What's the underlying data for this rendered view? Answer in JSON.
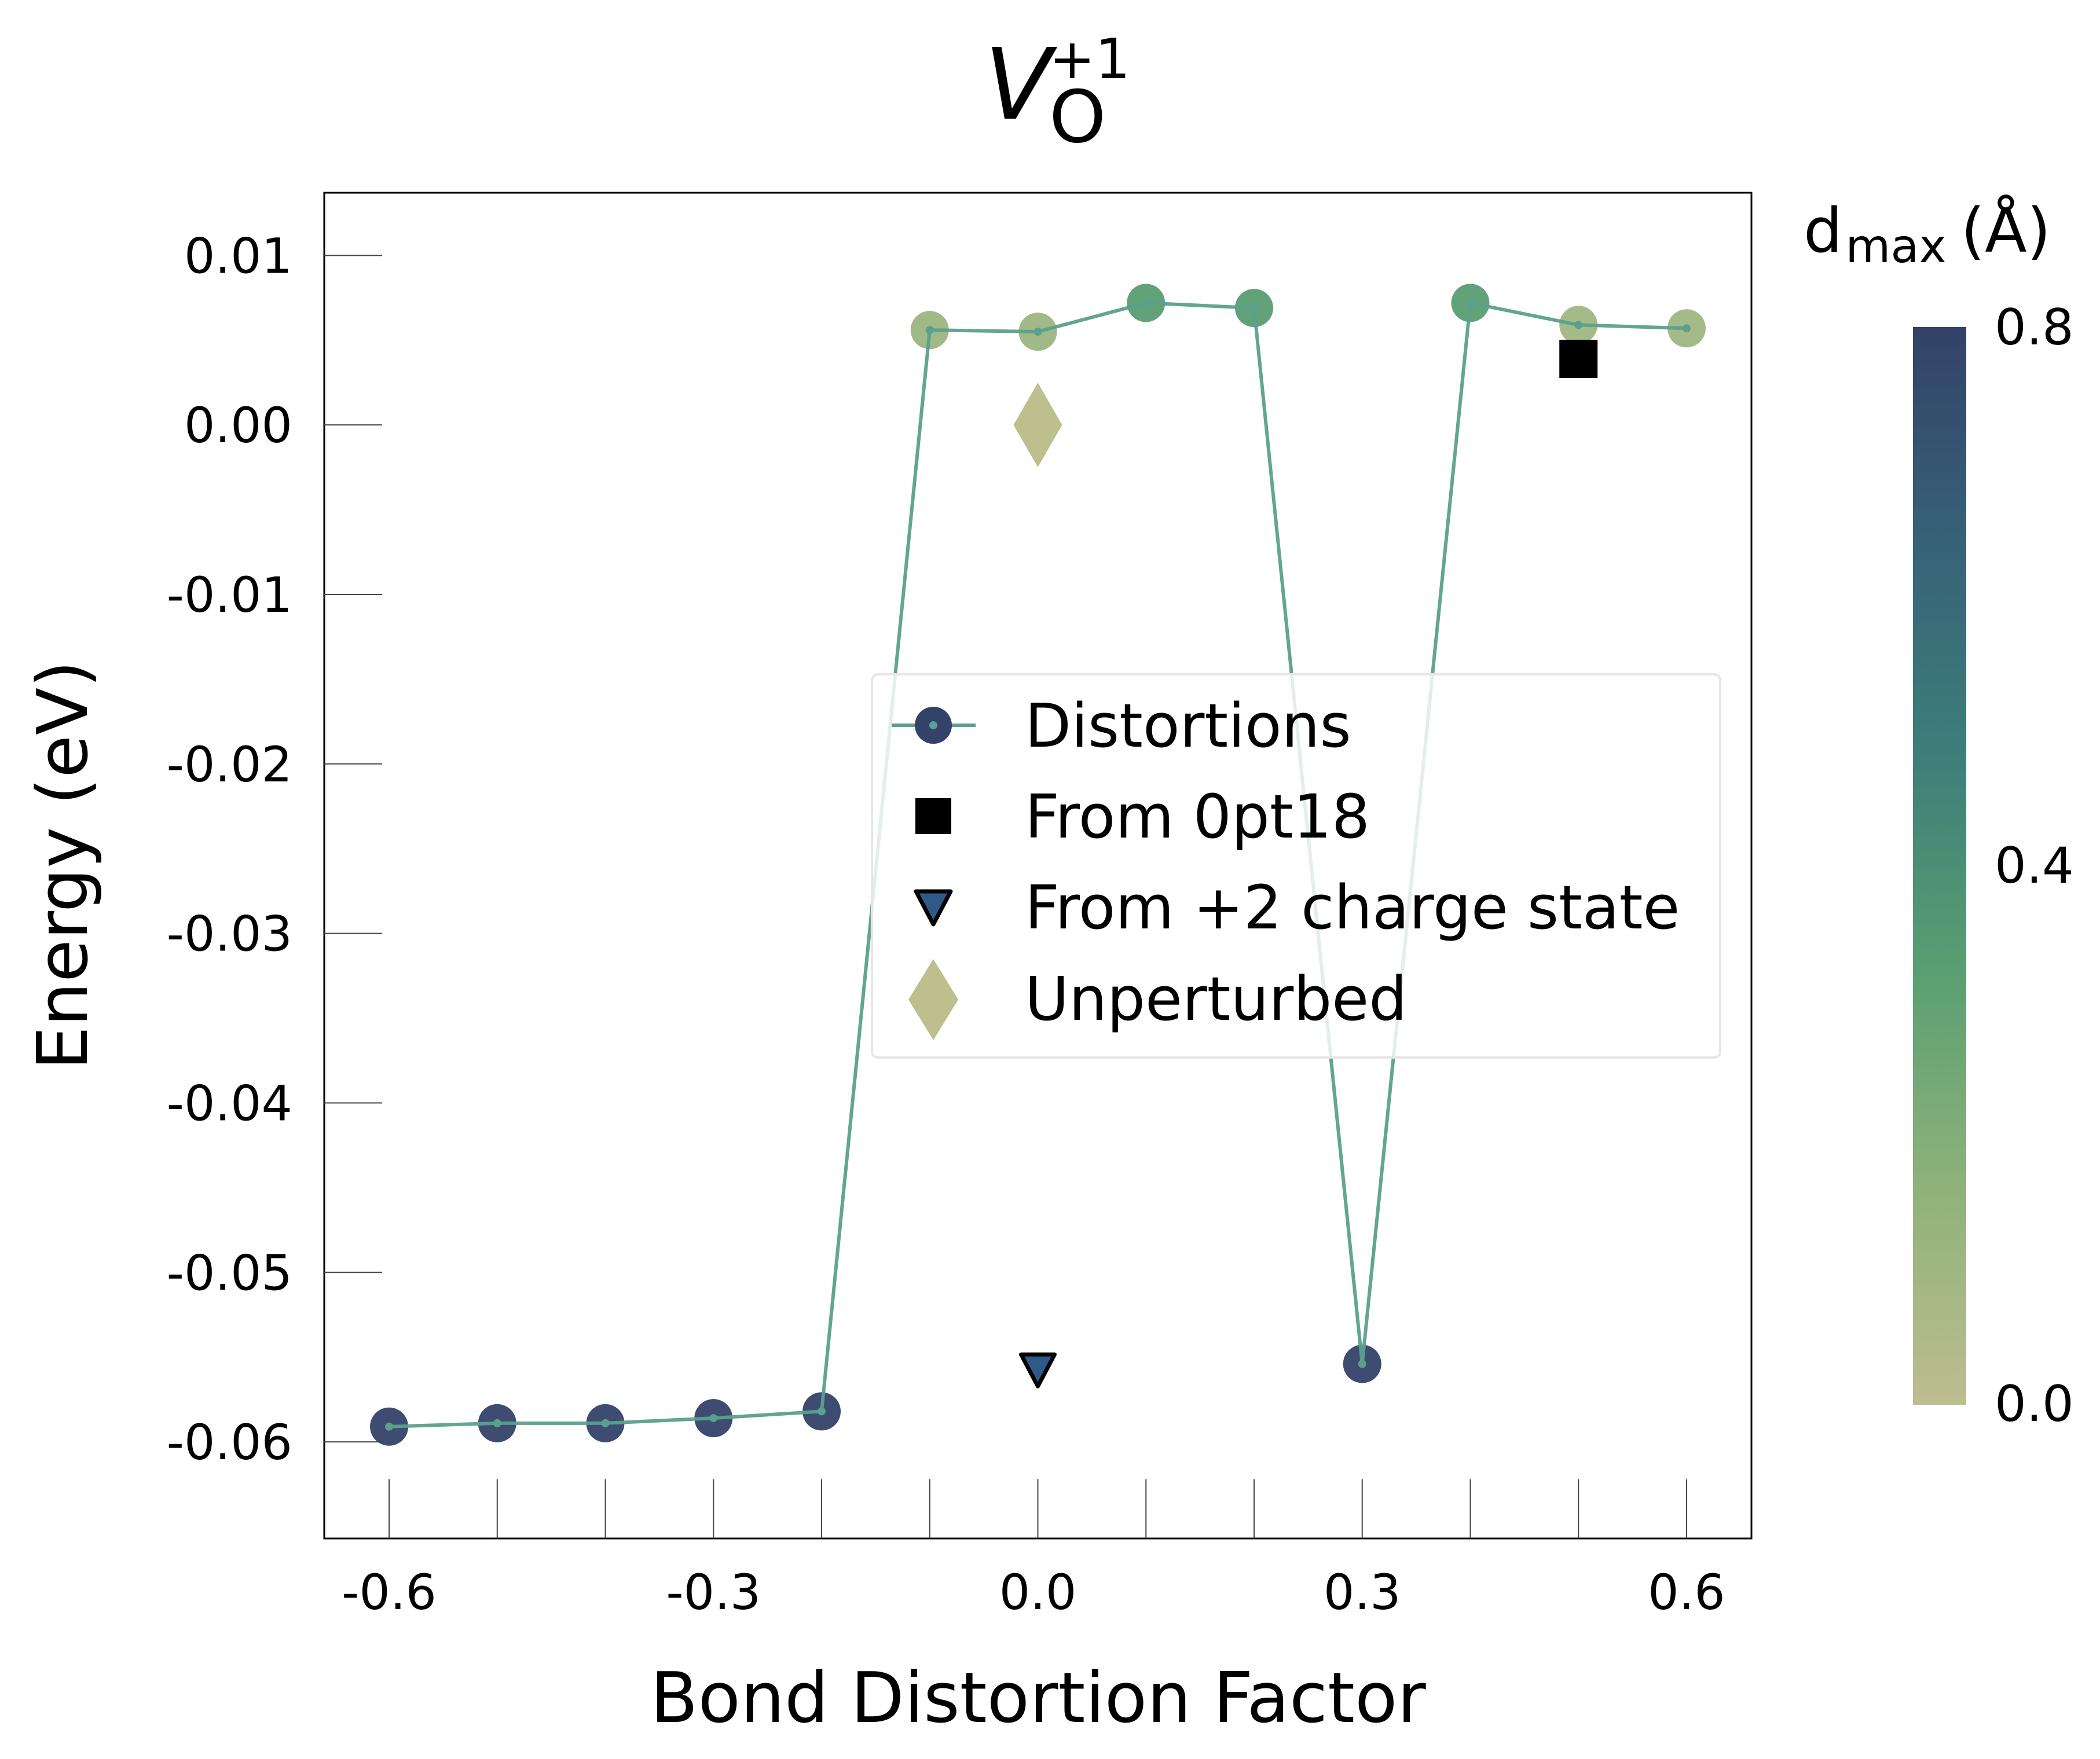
{
  "chart_data": {
    "type": "scatter",
    "title": {
      "main": "V",
      "superscript": "+1",
      "subscript": "O"
    },
    "xlabel": "Bond Distortion Factor",
    "ylabel": "Energy (eV)",
    "xlim": [
      -0.66,
      0.66
    ],
    "ylim": [
      -0.0657,
      0.0137
    ],
    "x_ticks": [
      -0.6,
      -0.5,
      -0.4,
      -0.3,
      -0.2,
      -0.1,
      0.0,
      0.1,
      0.2,
      0.3,
      0.4,
      0.5,
      0.6
    ],
    "x_tick_labels": [
      {
        "value": -0.6,
        "label": "-0.6"
      },
      {
        "value": -0.3,
        "label": "-0.3"
      },
      {
        "value": 0.0,
        "label": "0.0"
      },
      {
        "value": 0.3,
        "label": "0.3"
      },
      {
        "value": 0.6,
        "label": "0.6"
      }
    ],
    "y_ticks": [
      {
        "value": 0.01,
        "label": "0.01"
      },
      {
        "value": 0.0,
        "label": "0.00"
      },
      {
        "value": -0.01,
        "label": "-0.01"
      },
      {
        "value": -0.02,
        "label": "-0.02"
      },
      {
        "value": -0.03,
        "label": "-0.03"
      },
      {
        "value": -0.04,
        "label": "-0.04"
      },
      {
        "value": -0.05,
        "label": "-0.05"
      },
      {
        "value": -0.06,
        "label": "-0.06"
      }
    ],
    "grid": false,
    "legend_position": "center-right",
    "series": [
      {
        "name": "Distortions",
        "marker": "circle",
        "line_color": "#5aa08c",
        "segments": [
          {
            "x": [
              -0.6,
              -0.5,
              -0.4,
              -0.3,
              -0.2,
              -0.1,
              0.0,
              0.1,
              0.2,
              0.3,
              0.4,
              0.5,
              0.6
            ],
            "y": [
              -0.0591,
              -0.0589,
              -0.0589,
              -0.0586,
              -0.0582,
              0.0056,
              0.0055,
              0.0072,
              0.0069,
              -0.0554,
              0.0072,
              0.0059,
              0.0057
            ],
            "dmax": [
              0.8,
              0.8,
              0.8,
              0.8,
              0.8,
              0.12,
              0.12,
              0.33,
              0.33,
              0.8,
              0.33,
              0.1,
              0.1
            ]
          }
        ]
      },
      {
        "name": "From 0pt18",
        "marker": "square",
        "color": "#000000",
        "x": [
          0.5
        ],
        "y": [
          0.0039
        ]
      },
      {
        "name": "From +2 charge state",
        "marker": "triangle-down",
        "color": "#2e5a88",
        "x": [
          0.0
        ],
        "y": [
          -0.0557
        ]
      },
      {
        "name": "Unperturbed",
        "marker": "diamond",
        "color": "#bdbf8c",
        "x": [
          0.0
        ],
        "y": [
          0.0
        ]
      }
    ],
    "colorbar": {
      "label": "d",
      "label_subscript": "max",
      "label_unit": "(Å)",
      "range": [
        0.0,
        0.8
      ],
      "ticks": [
        {
          "value": 0.8,
          "label": "0.8"
        },
        {
          "value": 0.4,
          "label": "0.4"
        },
        {
          "value": 0.0,
          "label": "0.0"
        }
      ],
      "colors": [
        "#bdbd91",
        "#8fb27a",
        "#5a9f72",
        "#3d7f79",
        "#376278",
        "#334268"
      ]
    }
  }
}
